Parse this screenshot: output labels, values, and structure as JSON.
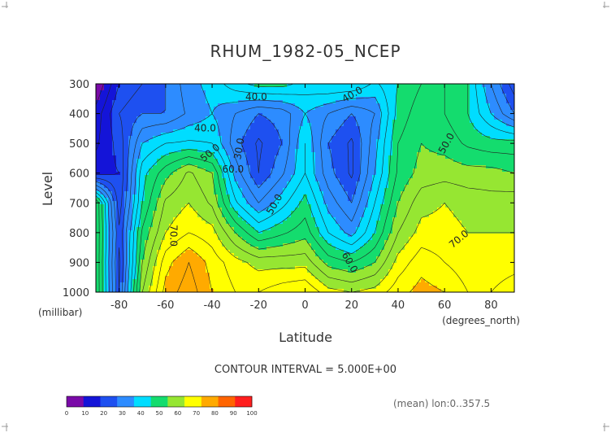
{
  "chart_data": {
    "type": "heatmap",
    "title": "RHUM_1982-05_NCEP",
    "ylabel": "Level",
    "yunit": "(millibar)",
    "xlabel": "Latitude",
    "xunit": "(degrees_north)",
    "xlim": [
      -90,
      90
    ],
    "ylim": [
      1000,
      300
    ],
    "x_ticks": [
      -80,
      -60,
      -40,
      -20,
      0,
      20,
      40,
      60,
      80
    ],
    "y_ticks": [
      300,
      400,
      500,
      600,
      700,
      800,
      900,
      1000
    ],
    "x_tick_labels": [
      "-80",
      "-60",
      "-40",
      "-20",
      "0",
      "20",
      "40",
      "60",
      "80"
    ],
    "y_tick_labels": [
      "300",
      "400",
      "500",
      "600",
      "700",
      "800",
      "900",
      "1000"
    ],
    "contour_interval_text": "CONTOUR INTERVAL = 5.000E+00",
    "footnote": "(mean) lon:0..357.5",
    "contour_labels": [
      "40.0",
      "40.0",
      "30.0",
      "40.0",
      "50.0",
      "60.0",
      "50.0",
      "50.0",
      "70.0",
      "60.0",
      "70.0"
    ],
    "colorbar": {
      "ticks": [
        "0",
        "10",
        "20",
        "30",
        "40",
        "50",
        "60",
        "70",
        "80",
        "90",
        "100"
      ],
      "colors": [
        "#7a0aa8",
        "#1414d8",
        "#1e50f0",
        "#2d8cff",
        "#00ddff",
        "#14dc6e",
        "#96e632",
        "#ffff00",
        "#ffaa00",
        "#ff6400",
        "#ff1e1e"
      ]
    },
    "lats": [
      -90,
      -80,
      -70,
      -60,
      -50,
      -40,
      -30,
      -20,
      -10,
      0,
      10,
      20,
      30,
      40,
      50,
      60,
      70,
      80,
      90
    ],
    "levels": [
      300,
      400,
      500,
      600,
      700,
      800,
      900,
      1000
    ],
    "values": [
      [
        5,
        20,
        25,
        30,
        38,
        42,
        48,
        52,
        52,
        48,
        50,
        50,
        44,
        50,
        55,
        55,
        50,
        35,
        22
      ],
      [
        12,
        25,
        30,
        30,
        36,
        40,
        35,
        30,
        32,
        40,
        35,
        30,
        35,
        52,
        58,
        55,
        50,
        40,
        30
      ],
      [
        14,
        22,
        40,
        45,
        46,
        45,
        32,
        24,
        30,
        45,
        30,
        24,
        38,
        55,
        60,
        58,
        54,
        52,
        52
      ],
      [
        18,
        20,
        48,
        58,
        66,
        60,
        38,
        25,
        34,
        45,
        32,
        24,
        40,
        56,
        62,
        63,
        62,
        62,
        60
      ],
      [
        60,
        22,
        50,
        66,
        70,
        64,
        46,
        35,
        43,
        52,
        38,
        30,
        45,
        60,
        68,
        70,
        68,
        67,
        68
      ],
      [
        60,
        26,
        56,
        70,
        75,
        72,
        60,
        50,
        54,
        58,
        45,
        38,
        50,
        65,
        72,
        72,
        70,
        70,
        70
      ],
      [
        60,
        24,
        60,
        78,
        85,
        78,
        72,
        68,
        68,
        68,
        58,
        55,
        60,
        72,
        78,
        75,
        72,
        72,
        73
      ],
      [
        60,
        25,
        65,
        82,
        88,
        80,
        75,
        75,
        78,
        80,
        72,
        70,
        72,
        78,
        82,
        80,
        75,
        75,
        78
      ]
    ]
  }
}
